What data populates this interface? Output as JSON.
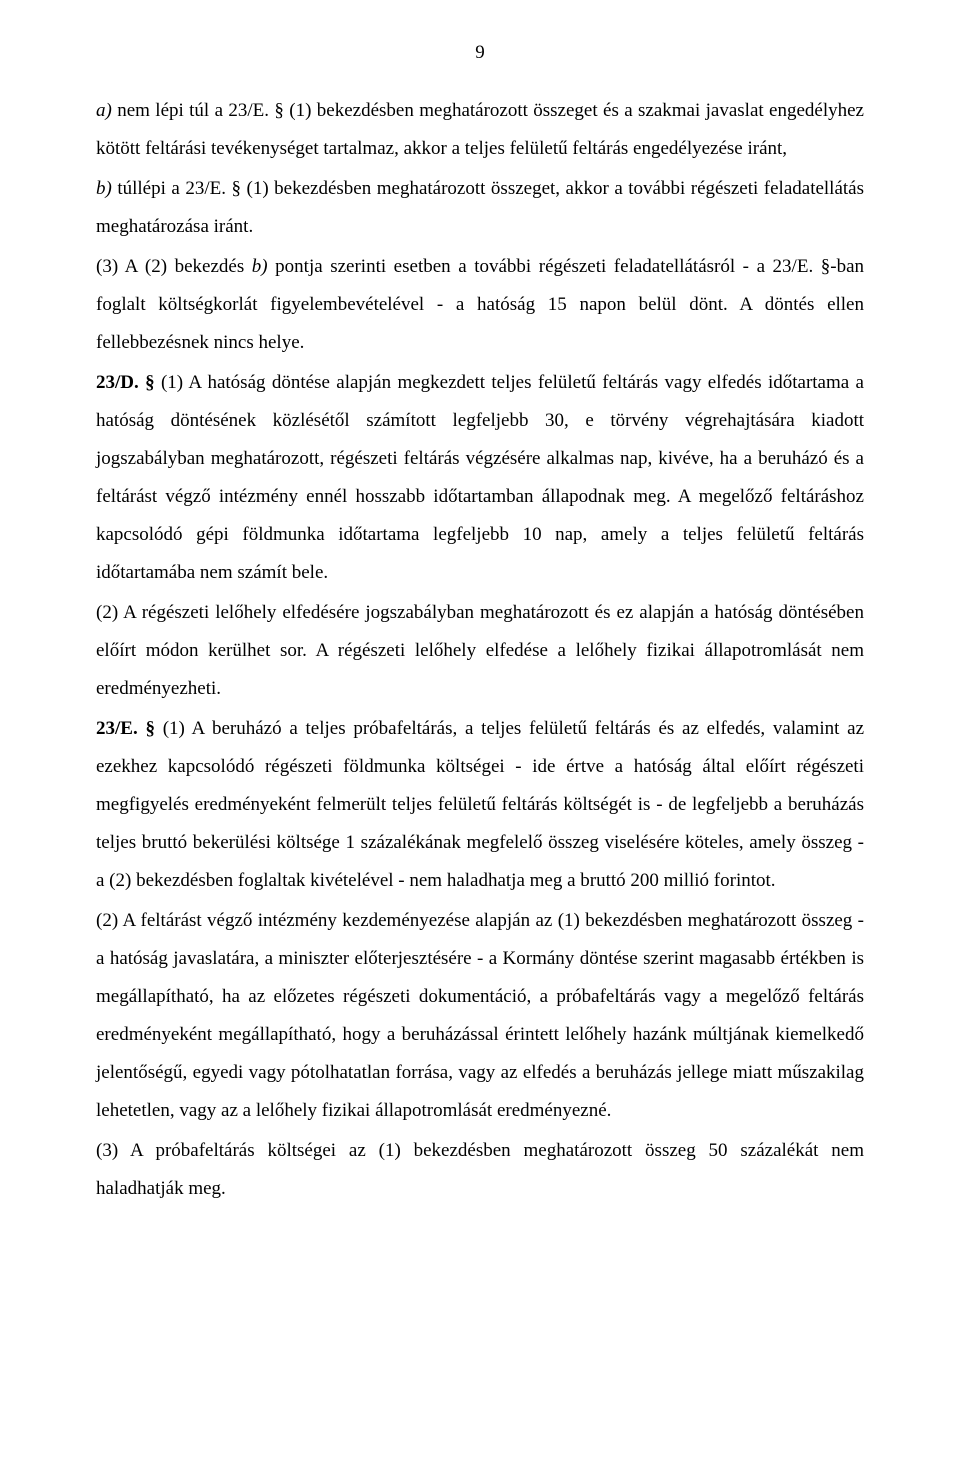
{
  "page_number": "9",
  "paragraphs": {
    "p1a": "a)",
    "p1b": " nem lépi túl a 23/E. § (1) bekezdésben meghatározott összeget és a szakmai javaslat engedélyhez kötött feltárási tevékenységet tartalmaz, akkor a teljes felületű feltárás engedélyezése iránt,",
    "p2a": "b)",
    "p2b": " túllépi a 23/E. § (1) bekezdésben meghatározott összeget, akkor a további régészeti feladatellátás meghatározása iránt.",
    "p3a": " (3) A (2) bekezdés ",
    "p3b": "b)",
    "p3c": " pontja szerinti esetben a további régészeti feladatellátásról - a 23/E. §-ban foglalt költségkorlát figyelembevételével - a hatóság 15 napon belül dönt. A döntés ellen fellebbezésnek nincs helye.",
    "p4a": "23/D. §",
    "p4b": " (1) A hatóság döntése alapján megkezdett teljes felületű feltárás vagy elfedés időtartama a hatóság döntésének közlésétől számított legfeljebb 30, e törvény végrehajtására kiadott jogszabályban meghatározott, régészeti feltárás végzésére alkalmas nap, kivéve, ha a beruházó és a feltárást végző intézmény ennél hosszabb időtartamban állapodnak meg. A megelőző feltáráshoz kapcsolódó gépi földmunka időtartama legfeljebb 10 nap, amely a teljes felületű feltárás időtartamába nem számít bele.",
    "p5": " (2) A régészeti lelőhely elfedésére jogszabályban meghatározott és ez alapján a hatóság döntésében előírt módon kerülhet sor. A régészeti lelőhely elfedése a lelőhely fizikai állapotromlását nem eredményezheti.",
    "p6a": "23/E. §",
    "p6b": " (1) A beruházó a teljes próbafeltárás, a teljes felületű feltárás és az elfedés, valamint az ezekhez kapcsolódó régészeti földmunka költségei - ide értve a hatóság által előírt régészeti megfigyelés eredményeként felmerült teljes felületű feltárás költségét is - de legfeljebb a beruházás teljes bruttó bekerülési költsége 1 százalékának megfelelő összeg viselésére köteles, amely összeg - a (2) bekezdésben foglaltak kivételével - nem haladhatja meg a bruttó 200 millió forintot.",
    "p7": " (2) A feltárást végző intézmény kezdeményezése alapján az (1) bekezdésben meghatározott összeg - a hatóság javaslatára, a miniszter előterjesztésére - a Kormány döntése szerint magasabb értékben is megállapítható, ha az előzetes régészeti dokumentáció, a próbafeltárás vagy a megelőző feltárás eredményeként megállapítható, hogy a beruházással érintett lelőhely hazánk múltjának kiemelkedő jelentőségű, egyedi vagy pótolhatatlan forrása, vagy az elfedés a beruházás jellege miatt műszakilag lehetetlen, vagy az a lelőhely fizikai állapotromlását eredményezné.",
    "p8": "(3) A próbafeltárás költségei az (1) bekezdésben meghatározott összeg 50 százalékát nem haladhatják meg."
  }
}
